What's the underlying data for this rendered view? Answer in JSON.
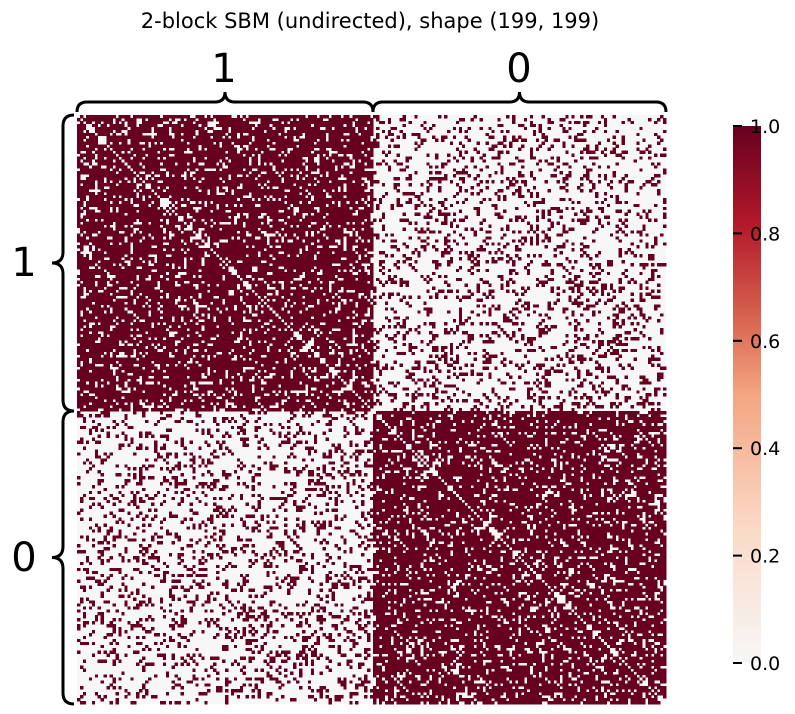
{
  "chart_data": {
    "type": "heatmap",
    "title": "2-block SBM (undirected), shape (199, 199)",
    "shape": [
      199,
      199
    ],
    "blocks": [
      {
        "label": "1",
        "size": 100
      },
      {
        "label": "0",
        "size": 99
      }
    ],
    "edge_probability": {
      "within_block": 0.8,
      "between_block": 0.2
    },
    "diagonal_value": 0,
    "colormap": "RdBu_r (upper half)",
    "color_min": "#f7f7f7",
    "color_max": "#67001f",
    "colorbar": {
      "vmin": 0.0,
      "vmax": 1.0,
      "ticks": [
        "0.0",
        "0.2",
        "0.4",
        "0.6",
        "0.8",
        "1.0"
      ]
    }
  }
}
